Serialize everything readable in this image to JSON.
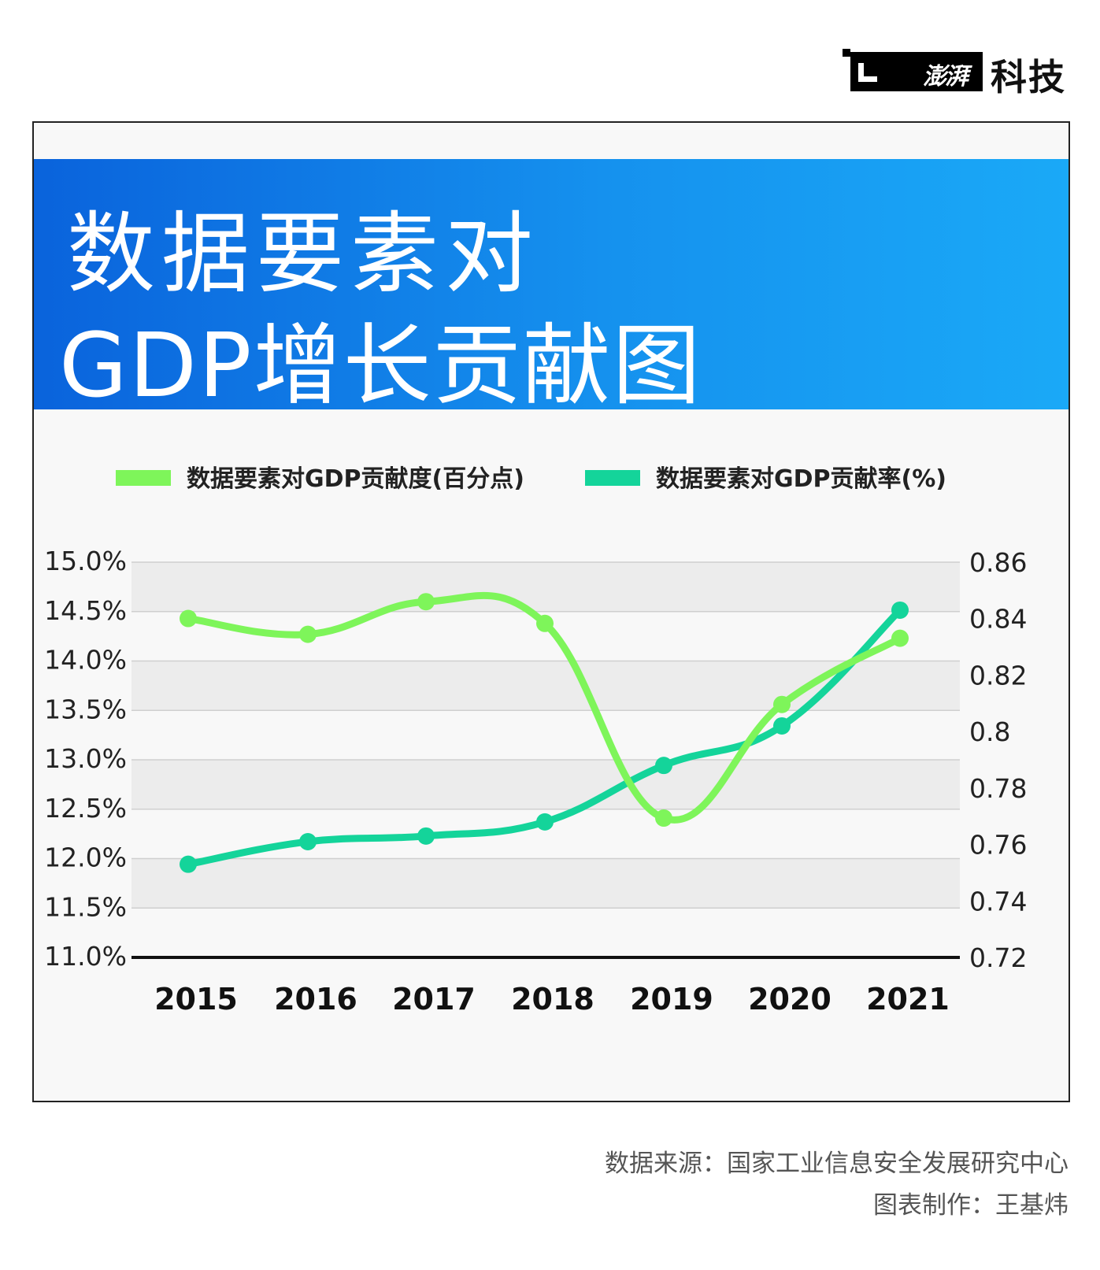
{
  "brand": {
    "logo_text": "澎湃",
    "name": "科技"
  },
  "title": {
    "line1": "数据要素对",
    "line2": "GDP增长贡献图"
  },
  "footer": {
    "source": "数据来源：国家工业信息安全发展研究中心",
    "author": "图表制作：王基炜"
  },
  "colors": {
    "series1": "#7ef55a",
    "series2": "#14d49a",
    "banner_start": "#0a63dc",
    "banner_end": "#1aa9f7"
  },
  "chart_data": {
    "type": "line",
    "categories": [
      "2015",
      "2016",
      "2017",
      "2018",
      "2019",
      "2020",
      "2021"
    ],
    "series": [
      {
        "name": "数据要素对GDP贡献度(百分点)",
        "axis": "left",
        "values": [
          14.43,
          14.27,
          14.6,
          14.38,
          12.41,
          13.56,
          14.23
        ]
      },
      {
        "name": "数据要素对GDP贡献率(%)",
        "axis": "right",
        "values": [
          0.753,
          0.761,
          0.763,
          0.768,
          0.788,
          0.802,
          0.843
        ]
      }
    ],
    "y_left": {
      "ticks": [
        "15.0%",
        "14.5%",
        "14.0%",
        "13.5%",
        "13.0%",
        "12.5%",
        "12.0%",
        "11.5%",
        "11.0%"
      ],
      "lim": [
        11.0,
        15.0
      ]
    },
    "y_right": {
      "ticks": [
        "0.86",
        "0.84",
        "0.82",
        "0.8",
        "0.78",
        "0.76",
        "0.74",
        "0.72"
      ],
      "lim": [
        0.72,
        0.86
      ]
    },
    "grid": true,
    "legend": "top"
  }
}
